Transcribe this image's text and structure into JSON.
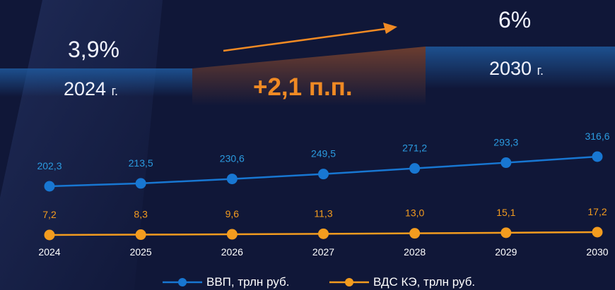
{
  "header": {
    "start_value": "3,9%",
    "start_year": "2024",
    "start_year_suffix": "г.",
    "end_value": "6%",
    "end_year": "2030",
    "end_year_suffix": "г.",
    "delta": "+2,1 п.п."
  },
  "colors": {
    "background": "#101738",
    "gdp": "#1877d2",
    "gdp_label": "#2b9be0",
    "cde": "#f39c1f",
    "accent": "#f08a24"
  },
  "chart_data": {
    "type": "line",
    "x": [
      "2024",
      "2025",
      "2026",
      "2027",
      "2028",
      "2029",
      "2030"
    ],
    "series": [
      {
        "name": "ВВП, трлн руб.",
        "values": [
          202.3,
          213.5,
          230.6,
          249.5,
          271.2,
          293.3,
          316.6
        ],
        "labels": [
          "202,3",
          "213,5",
          "230,6",
          "249,5",
          "271,2",
          "293,3",
          "316,6"
        ]
      },
      {
        "name": "ВДС КЭ, трлн руб.",
        "values": [
          7.2,
          8.3,
          9.6,
          11.3,
          13.0,
          15.1,
          17.2
        ],
        "labels": [
          "7,2",
          "8,3",
          "9,6",
          "11,3",
          "13,0",
          "15,1",
          "17,2"
        ]
      }
    ],
    "legend_position": "bottom",
    "grid": false
  }
}
